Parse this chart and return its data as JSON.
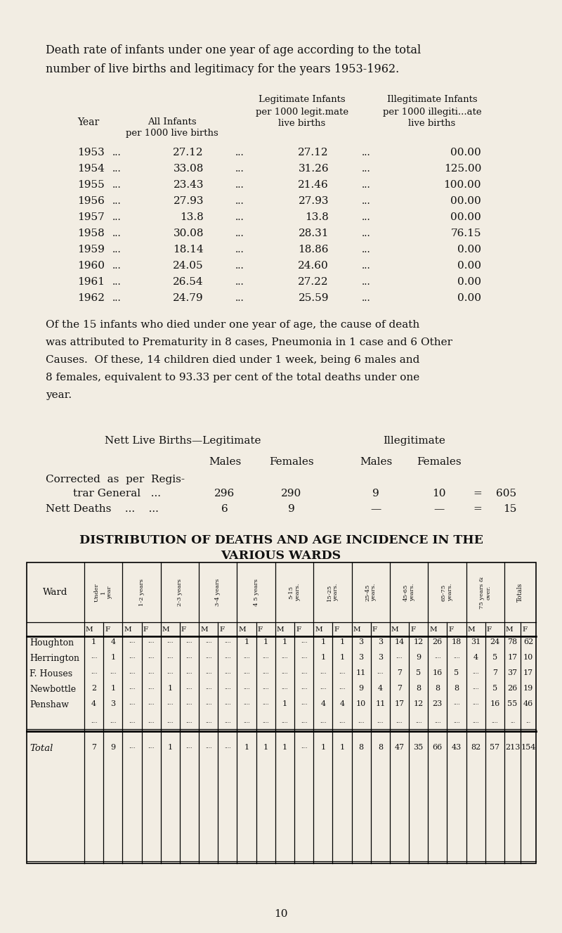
{
  "bg_color": "#f2ede3",
  "title_line1": "Death rate of infants under one year of age according to the total",
  "title_line2": "number of live births and legitimacy for the years 1953-1962.",
  "table1_data": [
    [
      "1953",
      "...",
      "27.12",
      "...",
      "27.12",
      "...",
      "00.00"
    ],
    [
      "1954",
      "...",
      "33.08",
      "...",
      "31.26",
      "...",
      "125.00"
    ],
    [
      "1955",
      "...",
      "23.43",
      "...",
      "21.46",
      "...",
      "100.00"
    ],
    [
      "1956",
      "...",
      "27.93",
      "...",
      "27.93",
      "...",
      "00.00"
    ],
    [
      "1957",
      "...",
      "13.8",
      "...",
      "13.8",
      "...",
      "00.00"
    ],
    [
      "1958",
      "...",
      "30.08",
      "...",
      "28.31",
      "...",
      "76.15"
    ],
    [
      "1959",
      "...",
      "18.14",
      "...",
      "18.86",
      "...",
      "0.00"
    ],
    [
      "1960",
      "...",
      "24.05",
      "...",
      "24.60",
      "...",
      "0.00"
    ],
    [
      "1961",
      "...",
      "26.54",
      "...",
      "27.22",
      "...",
      "0.00"
    ],
    [
      "1962",
      "...",
      "24.79",
      "...",
      "25.59",
      "...",
      "0.00"
    ]
  ],
  "para_text": [
    "Of the 15 infants who died under one year of age, the cause of death",
    "was attributed to Prematurity in 8 cases, Pneumonia in 1 case and 6 Other",
    "Causes.  Of these, 14 children died under 1 week, being 6 males and",
    "8 females, equivalent to 93.33 per cent of the total deaths under one",
    "year."
  ],
  "ward_data_M": [
    [
      1,
      null,
      null,
      null,
      1,
      1,
      1,
      3,
      14,
      26,
      31,
      78
    ],
    [
      null,
      null,
      null,
      null,
      null,
      null,
      1,
      3,
      null,
      null,
      4,
      17
    ],
    [
      null,
      null,
      null,
      null,
      null,
      null,
      null,
      11,
      7,
      16,
      null,
      37
    ],
    [
      2,
      null,
      1,
      null,
      null,
      null,
      null,
      9,
      7,
      8,
      null,
      26
    ],
    [
      4,
      null,
      null,
      null,
      null,
      1,
      4,
      10,
      17,
      23,
      null,
      55
    ],
    [
      null,
      null,
      null,
      null,
      null,
      null,
      null,
      null,
      null,
      null,
      null,
      null
    ],
    [
      7,
      null,
      1,
      null,
      1,
      1,
      1,
      8,
      47,
      66,
      82,
      213
    ]
  ],
  "ward_data_F": [
    [
      4,
      null,
      null,
      null,
      1,
      null,
      1,
      3,
      12,
      18,
      24,
      62
    ],
    [
      1,
      null,
      null,
      null,
      null,
      null,
      1,
      3,
      9,
      null,
      5,
      10
    ],
    [
      null,
      null,
      null,
      null,
      null,
      null,
      null,
      null,
      5,
      5,
      7,
      17
    ],
    [
      1,
      null,
      null,
      null,
      null,
      null,
      null,
      4,
      8,
      8,
      5,
      19
    ],
    [
      3,
      null,
      null,
      null,
      null,
      null,
      4,
      11,
      12,
      null,
      16,
      46
    ],
    [
      null,
      null,
      null,
      null,
      null,
      null,
      null,
      null,
      null,
      null,
      null,
      null
    ],
    [
      9,
      null,
      null,
      null,
      1,
      null,
      1,
      8,
      35,
      43,
      57,
      154
    ]
  ],
  "page_number": "10"
}
